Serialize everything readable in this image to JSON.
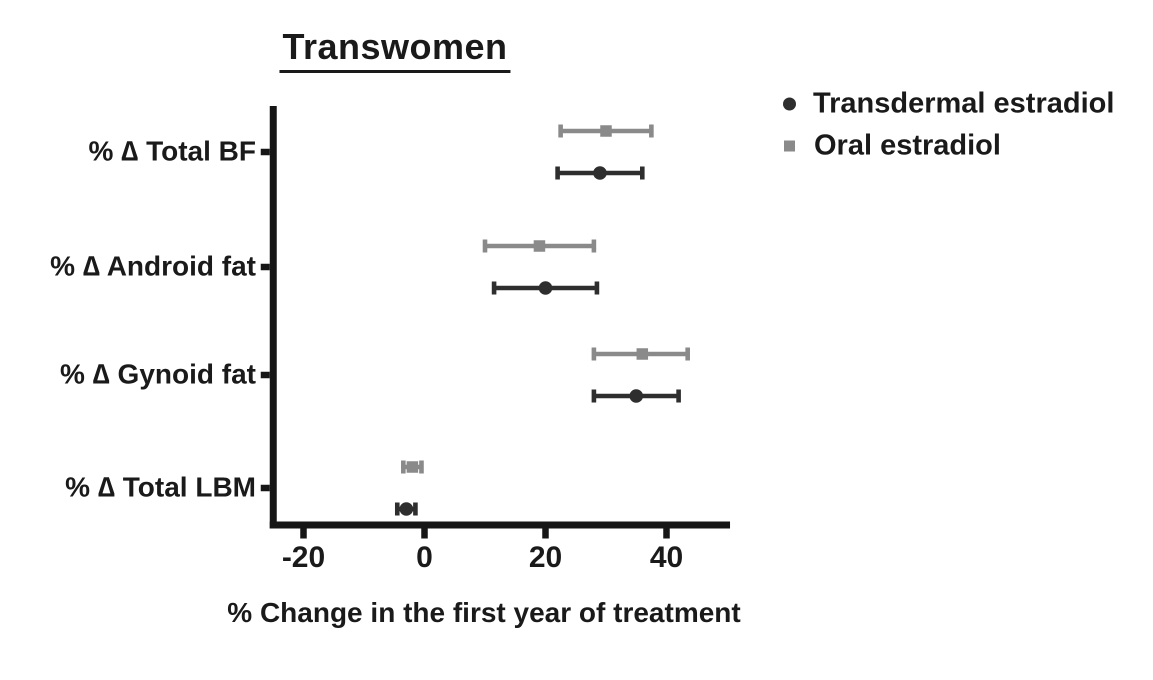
{
  "chart_data": {
    "type": "scatter",
    "subtype": "horizontal-dot-plot-with-error-bars",
    "title": "Transwomen",
    "xlabel": "% Change in the first year of treatment",
    "ylabel": "",
    "categories": [
      "% ∆ Total BF",
      "% ∆ Android fat",
      "% ∆ Gynoid fat",
      "% ∆ Total LBM"
    ],
    "x_ticks": [
      -20,
      0,
      20,
      40
    ],
    "xlim": [
      -25,
      50.5
    ],
    "grid": false,
    "legend_position": "top-right",
    "axis_color": "#161616",
    "text_color": "#1a1a1a",
    "series": [
      {
        "name": "Transdermal estradiol",
        "marker": "circle",
        "color": "#2e2e2e",
        "values": [
          {
            "category": "% ∆ Total BF",
            "mean": 29,
            "lo": 22,
            "hi": 36
          },
          {
            "category": "% ∆ Android fat",
            "mean": 20,
            "lo": 11.5,
            "hi": 28.5
          },
          {
            "category": "% ∆ Gynoid fat",
            "mean": 35,
            "lo": 28,
            "hi": 42
          },
          {
            "category": "% ∆ Total LBM",
            "mean": -3,
            "lo": -4.5,
            "hi": -1.5
          }
        ]
      },
      {
        "name": "Oral estradiol",
        "marker": "square",
        "color": "#8a8a8a",
        "values": [
          {
            "category": "% ∆ Total BF",
            "mean": 30,
            "lo": 22.5,
            "hi": 37.5
          },
          {
            "category": "% ∆ Android fat",
            "mean": 19,
            "lo": 10,
            "hi": 28
          },
          {
            "category": "% ∆ Gynoid fat",
            "mean": 36,
            "lo": 28,
            "hi": 43.5
          },
          {
            "category": "% ∆ Total LBM",
            "mean": -2,
            "lo": -3.5,
            "hi": -0.5
          }
        ]
      }
    ]
  }
}
